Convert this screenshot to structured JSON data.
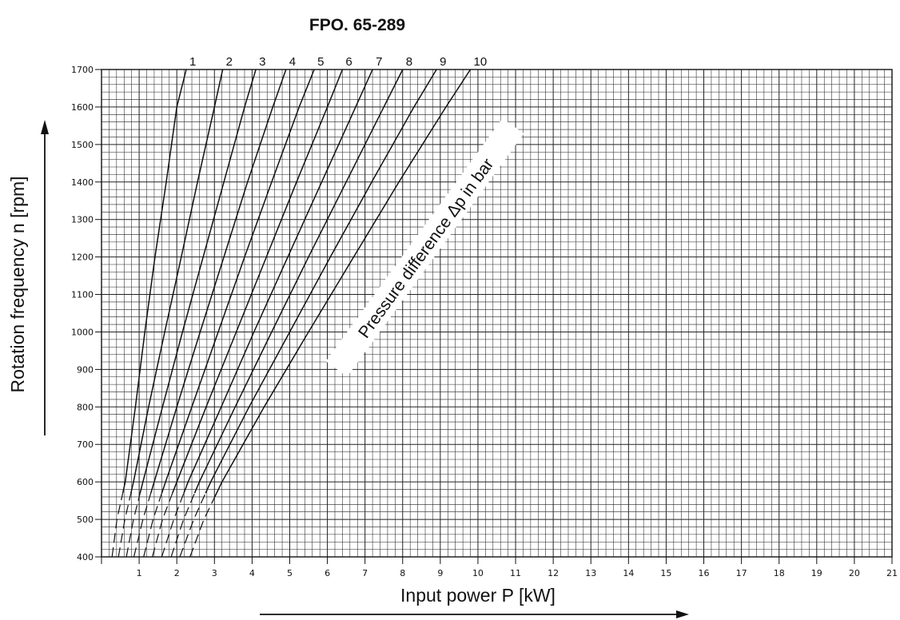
{
  "chart_data": {
    "type": "line",
    "title": "FPO. 65-289",
    "xlabel": "Input power P [kW]",
    "ylabel": "Rotation frequency n [rpm]",
    "xlim": [
      0,
      21
    ],
    "ylim": [
      400,
      1700
    ],
    "x_ticks": [
      "1",
      "2",
      "3",
      "4",
      "5",
      "6",
      "7",
      "8",
      "9",
      "10",
      "11",
      "12",
      "13",
      "14",
      "15",
      "16",
      "17",
      "18",
      "19",
      "20",
      "21"
    ],
    "y_ticks": [
      "400",
      "500",
      "600",
      "700",
      "800",
      "900",
      "1000",
      "1100",
      "1200",
      "1300",
      "1400",
      "1500",
      "1600",
      "1700"
    ],
    "grid": true,
    "annotation": "Pressure difference Δp in bar",
    "series": [
      {
        "name": "1",
        "solid_from_rpm": 570,
        "x": [
          0.28,
          0.41,
          0.63,
          0.9,
          1.15,
          1.42,
          1.72,
          2.0,
          2.25
        ],
        "y": [
          400,
          500,
          600,
          800,
          1000,
          1200,
          1400,
          1600,
          1700
        ]
      },
      {
        "name": "2",
        "solid_from_rpm": 570,
        "x": [
          0.45,
          0.62,
          0.85,
          1.25,
          1.68,
          2.12,
          2.55,
          3.0,
          3.22
        ],
        "y": [
          400,
          500,
          600,
          800,
          1000,
          1200,
          1400,
          1600,
          1700
        ]
      },
      {
        "name": "3",
        "solid_from_rpm": 570,
        "x": [
          0.66,
          0.85,
          1.1,
          1.62,
          2.15,
          2.7,
          3.25,
          3.8,
          4.1
        ],
        "y": [
          400,
          500,
          600,
          800,
          1000,
          1200,
          1400,
          1600,
          1700
        ]
      },
      {
        "name": "4",
        "solid_from_rpm": 570,
        "x": [
          0.86,
          1.1,
          1.4,
          2.0,
          2.62,
          3.25,
          3.88,
          4.55,
          4.9
        ],
        "y": [
          400,
          500,
          600,
          800,
          1000,
          1200,
          1400,
          1600,
          1700
        ]
      },
      {
        "name": "5",
        "solid_from_rpm": 570,
        "x": [
          1.12,
          1.37,
          1.7,
          2.4,
          3.1,
          3.8,
          4.52,
          5.25,
          5.65
        ],
        "y": [
          400,
          500,
          600,
          800,
          1000,
          1200,
          1400,
          1600,
          1700
        ]
      },
      {
        "name": "6",
        "solid_from_rpm": 570,
        "x": [
          1.35,
          1.62,
          2.0,
          2.78,
          3.58,
          4.38,
          5.18,
          6.0,
          6.4
        ],
        "y": [
          400,
          500,
          600,
          800,
          1000,
          1200,
          1400,
          1600,
          1700
        ]
      },
      {
        "name": "7",
        "solid_from_rpm": 570,
        "x": [
          1.6,
          1.92,
          2.3,
          3.18,
          4.05,
          4.95,
          5.85,
          6.75,
          7.2
        ],
        "y": [
          400,
          500,
          600,
          800,
          1000,
          1200,
          1400,
          1600,
          1700
        ]
      },
      {
        "name": "8",
        "solid_from_rpm": 570,
        "x": [
          1.85,
          2.18,
          2.6,
          3.55,
          4.52,
          5.5,
          6.5,
          7.5,
          8.0
        ],
        "y": [
          400,
          500,
          600,
          800,
          1000,
          1200,
          1400,
          1600,
          1700
        ]
      },
      {
        "name": "9",
        "solid_from_rpm": 570,
        "x": [
          2.08,
          2.45,
          2.9,
          3.92,
          5.0,
          6.08,
          7.18,
          8.3,
          8.9
        ],
        "y": [
          400,
          500,
          600,
          800,
          1000,
          1200,
          1400,
          1600,
          1700
        ]
      },
      {
        "name": "10",
        "solid_from_rpm": 560,
        "x": [
          2.35,
          2.72,
          3.2,
          4.32,
          5.5,
          6.7,
          7.9,
          9.15,
          9.8
        ],
        "y": [
          400,
          500,
          600,
          800,
          1000,
          1200,
          1400,
          1600,
          1700
        ]
      }
    ],
    "colors": {
      "line": "#111111",
      "grid": "#222222",
      "background": "#ffffff"
    }
  }
}
